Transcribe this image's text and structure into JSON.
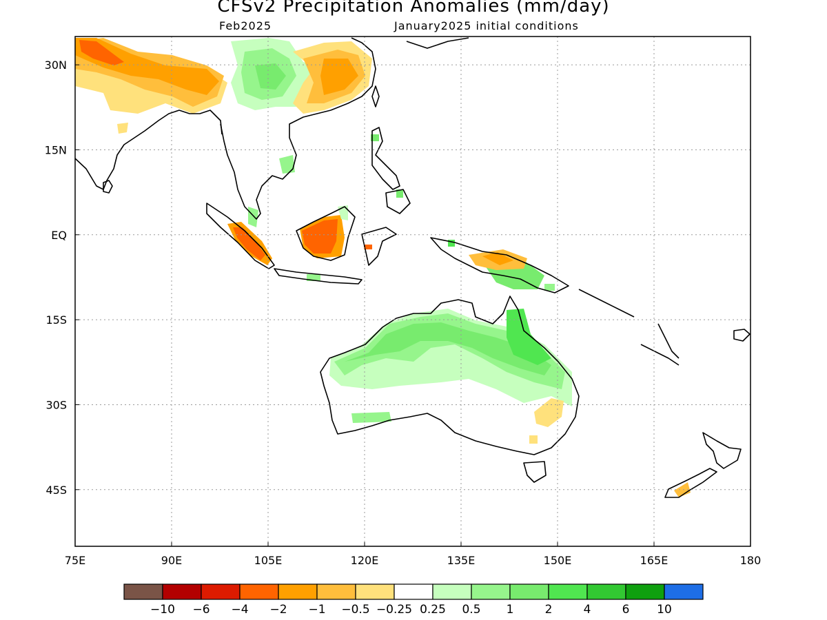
{
  "title": "CFSv2 Precipitation Anomalies (mm/day)",
  "valid_period": "Feb2025",
  "initial_conditions": "January2025 initial conditions",
  "map": {
    "lon_range": [
      75,
      180
    ],
    "lat_range": [
      -55,
      35
    ],
    "lon_ticks": [
      {
        "value": 75,
        "label": "75E"
      },
      {
        "value": 90,
        "label": "90E"
      },
      {
        "value": 105,
        "label": "105E"
      },
      {
        "value": 120,
        "label": "120E"
      },
      {
        "value": 135,
        "label": "135E"
      },
      {
        "value": 150,
        "label": "150E"
      },
      {
        "value": 165,
        "label": "165E"
      },
      {
        "value": 180,
        "label": "180"
      }
    ],
    "lat_ticks": [
      {
        "value": 30,
        "label": "30N"
      },
      {
        "value": 15,
        "label": "15N"
      },
      {
        "value": 0,
        "label": "EQ"
      },
      {
        "value": -15,
        "label": "15S"
      },
      {
        "value": -30,
        "label": "30S"
      },
      {
        "value": -45,
        "label": "45S"
      }
    ],
    "grid": "dotted"
  },
  "colorbar": {
    "colors": [
      "#7a5447",
      "#b30000",
      "#dd1b00",
      "#ff6400",
      "#ffa000",
      "#ffbe3c",
      "#ffe17c",
      "#ffffff",
      "#c6ffbe",
      "#96f58c",
      "#78eb6e",
      "#50e650",
      "#32c832",
      "#0fa00f",
      "#1e6ee6"
    ],
    "labels": [
      "-10",
      "-6",
      "-4",
      "-2",
      "-1",
      "-0.5",
      "-0.25",
      "0.25",
      "0.5",
      "1",
      "2",
      "4",
      "6",
      "10"
    ]
  },
  "anomaly_regions": [
    {
      "region": "Northern India / Himalaya",
      "level": "-1 to -4"
    },
    {
      "region": "Southern China",
      "level": "-1 to -2"
    },
    {
      "region": "Tibetan Plateau / Yunnan",
      "level": "0.5 to 2"
    },
    {
      "region": "Sumatra",
      "level": "-2 to -4"
    },
    {
      "region": "Borneo",
      "level": "-2 to -4"
    },
    {
      "region": "New Guinea",
      "level": "-1 to 2"
    },
    {
      "region": "Northern Australia",
      "level": "0.5 to 2"
    },
    {
      "region": "Eastern Australia",
      "level": "-0.5"
    },
    {
      "region": "New Zealand South Island",
      "level": "-1"
    }
  ]
}
